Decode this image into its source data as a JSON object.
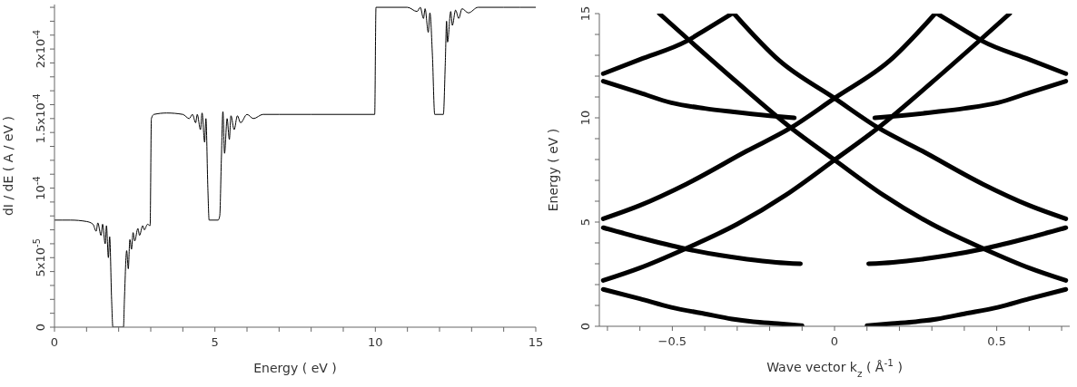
{
  "chart_data": [
    {
      "type": "line",
      "xlabel": "Energy ( eV )",
      "ylabel": "dI / dE ( A / eV )",
      "xlim": [
        0,
        15
      ],
      "ylim": [
        0,
        0.000232
      ],
      "xticks": [
        0,
        {
          "value": 1,
          "label": null
        },
        {
          "value": 2,
          "label": null
        },
        {
          "value": 3,
          "label": null
        },
        {
          "value": 4,
          "label": null
        },
        5,
        {
          "value": 6,
          "label": null
        },
        {
          "value": 7,
          "label": null
        },
        {
          "value": 8,
          "label": null
        },
        {
          "value": 9,
          "label": null
        },
        10,
        {
          "value": 11,
          "label": null
        },
        {
          "value": 12,
          "label": null
        },
        {
          "value": 13,
          "label": null
        },
        {
          "value": 14,
          "label": null
        },
        15
      ],
      "yticks": [
        0,
        {
          "value": 1e-05,
          "label": null
        },
        {
          "value": 2e-05,
          "label": null
        },
        {
          "value": 3e-05,
          "label": null
        },
        {
          "value": 4e-05,
          "label": null
        },
        {
          "value": 5e-05,
          "label": "5x10$^{-5}$"
        },
        {
          "value": 6e-05,
          "label": null
        },
        {
          "value": 7e-05,
          "label": null
        },
        {
          "value": 8e-05,
          "label": null
        },
        {
          "value": 9e-05,
          "label": null
        },
        {
          "value": 0.0001,
          "label": "10$^{-4}$"
        },
        {
          "value": 0.00011,
          "label": null
        },
        {
          "value": 0.00012,
          "label": null
        },
        {
          "value": 0.00013,
          "label": null
        },
        {
          "value": 0.00014,
          "label": null
        },
        {
          "value": 0.00015,
          "label": "1.5x10$^{-4}$"
        },
        {
          "value": 0.00016,
          "label": null
        },
        {
          "value": 0.00017,
          "label": null
        },
        {
          "value": 0.00018,
          "label": null
        },
        {
          "value": 0.00019,
          "label": null
        },
        {
          "value": 0.0002,
          "label": "2x10$^{-4}$"
        },
        {
          "value": 0.00021,
          "label": null
        },
        {
          "value": 0.00022,
          "label": null
        },
        {
          "value": 0.00023,
          "label": null
        }
      ],
      "series": [
        {
          "color": "#000000",
          "x": [
            0,
            0.5,
            1.0,
            1.2,
            1.3,
            1.35,
            1.45,
            1.5,
            1.58,
            1.62,
            1.68,
            1.72,
            1.78,
            1.82,
            2.15,
            2.18,
            2.25,
            2.3,
            2.35,
            2.4,
            2.45,
            2.5,
            2.6,
            2.65,
            2.75,
            2.8,
            2.9,
            2.98,
            3.02,
            3.1,
            3.5,
            4.0,
            4.2,
            4.3,
            4.4,
            4.45,
            4.55,
            4.6,
            4.68,
            4.72,
            4.78,
            4.82,
            5.1,
            5.15,
            5.2,
            5.25,
            5.3,
            5.38,
            5.45,
            5.5,
            5.6,
            5.7,
            5.8,
            6.0,
            6.2,
            6.5,
            7,
            8,
            9,
            9.98,
            10.02,
            10.5,
            11,
            11.3,
            11.4,
            11.5,
            11.55,
            11.65,
            11.7,
            11.78,
            11.85,
            12.12,
            12.18,
            12.22,
            12.25,
            12.35,
            12.4,
            12.5,
            12.6,
            12.7,
            12.9,
            13.2,
            14,
            15
          ],
          "values": [
            7.7e-05,
            7.7e-05,
            7.6e-05,
            7.4e-05,
            6.9e-05,
            7.5e-05,
            6.6e-05,
            7.4e-05,
            6e-05,
            7.3e-05,
            5e-05,
            6.5e-05,
            2e-05,
            0,
            0,
            2e-05,
            5.5e-05,
            4.2e-05,
            6.3e-05,
            5.6e-05,
            6.8e-05,
            6.2e-05,
            7.1e-05,
            6.6e-05,
            7.3e-05,
            7e-05,
            7.4e-05,
            7.3e-05,
            0.00015,
            0.000153,
            0.000154,
            0.000153,
            0.00015,
            0.000153,
            0.000147,
            0.000153,
            0.000142,
            0.000154,
            0.000133,
            0.00015,
            0.0001,
            7.7e-05,
            7.7e-05,
            8e-05,
            0.00012,
            0.000155,
            0.000125,
            0.00015,
            0.000135,
            0.000152,
            0.000142,
            0.000152,
            0.000147,
            0.000153,
            0.00015,
            0.000153,
            0.000153,
            0.000153,
            0.000153,
            0.000153,
            0.00023,
            0.00023,
            0.00023,
            0.000227,
            0.00023,
            0.000222,
            0.000229,
            0.000212,
            0.000226,
            0.000195,
            0.000153,
            0.000153,
            0.00019,
            0.00022,
            0.000205,
            0.000227,
            0.000217,
            0.000228,
            0.000222,
            0.000229,
            0.000226,
            0.00023,
            0.00023,
            0.00023
          ]
        }
      ]
    },
    {
      "type": "line",
      "xlabel": "Wave vector k$_{z}$ ( Å$^{-1}$ )",
      "ylabel": "Energy ( eV )",
      "xlim": [
        -0.725,
        0.725
      ],
      "ylim": [
        0,
        15
      ],
      "xticks": [
        {
          "value": -0.7,
          "label": null
        },
        {
          "value": -0.6,
          "label": null
        },
        {
          "value": -0.5,
          "label": "−0.5"
        },
        {
          "value": -0.4,
          "label": null
        },
        {
          "value": -0.3,
          "label": null
        },
        {
          "value": -0.2,
          "label": null
        },
        {
          "value": -0.1,
          "label": null
        },
        0,
        {
          "value": 0.1,
          "label": null
        },
        {
          "value": 0.2,
          "label": null
        },
        {
          "value": 0.3,
          "label": null
        },
        {
          "value": 0.4,
          "label": null
        },
        0.5,
        {
          "value": 0.6,
          "label": null
        },
        {
          "value": 0.7,
          "label": null
        }
      ],
      "yticks": [
        0,
        {
          "value": 1,
          "label": null
        },
        {
          "value": 2,
          "label": null
        },
        {
          "value": 3,
          "label": null
        },
        {
          "value": 4,
          "label": null
        },
        5,
        {
          "value": 6,
          "label": null
        },
        {
          "value": 7,
          "label": null
        },
        {
          "value": 8,
          "label": null
        },
        {
          "value": 9,
          "label": null
        },
        10,
        {
          "value": 11,
          "label": null
        },
        {
          "value": 12,
          "label": null
        },
        {
          "value": 13,
          "label": null
        },
        {
          "value": 14,
          "label": null
        },
        15
      ],
      "series": [
        {
          "color": "#000000",
          "x": [
            -0.713,
            -0.6,
            -0.503,
            -0.4,
            -0.316,
            -0.25,
            -0.176,
            -0.1
          ],
          "values": [
            1.77,
            1.32,
            0.91,
            0.6,
            0.35,
            0.22,
            0.13,
            0.03
          ]
        },
        {
          "color": "#000000",
          "x": [
            0.1,
            0.176,
            0.25,
            0.316,
            0.4,
            0.503,
            0.6,
            0.713
          ],
          "values": [
            0.03,
            0.13,
            0.22,
            0.35,
            0.6,
            0.91,
            1.32,
            1.77
          ]
        },
        {
          "color": "#000000",
          "x": [
            -0.713,
            -0.6,
            -0.46,
            -0.3,
            -0.15,
            0,
            0.133,
            0.3,
            0.45,
            0.54
          ],
          "values": [
            2.2,
            2.8,
            3.72,
            4.9,
            6.3,
            7.98,
            9.5,
            11.7,
            13.75,
            15
          ]
        },
        {
          "color": "#000000",
          "x": [
            -0.54,
            -0.45,
            -0.3,
            -0.133,
            0,
            0.15,
            0.3,
            0.46,
            0.6,
            0.713
          ],
          "values": [
            15,
            13.75,
            11.7,
            9.5,
            7.98,
            6.3,
            4.9,
            3.72,
            2.8,
            2.2
          ]
        },
        {
          "color": "#000000",
          "x": [
            -0.713,
            -0.6,
            -0.46,
            -0.35,
            -0.27,
            -0.18,
            -0.105
          ],
          "values": [
            4.73,
            4.25,
            3.72,
            3.4,
            3.22,
            3.07,
            3.0
          ]
        },
        {
          "color": "#000000",
          "x": [
            0.105,
            0.18,
            0.27,
            0.35,
            0.46,
            0.6,
            0.713
          ],
          "values": [
            3.0,
            3.07,
            3.22,
            3.4,
            3.72,
            4.25,
            4.73
          ]
        },
        {
          "color": "#000000",
          "x": [
            -0.713,
            -0.6,
            -0.456,
            -0.27,
            -0.138,
            0,
            0.17,
            0.31
          ],
          "values": [
            5.16,
            5.8,
            6.83,
            8.41,
            9.49,
            10.94,
            12.74,
            15
          ]
        },
        {
          "color": "#000000",
          "x": [
            -0.31,
            -0.17,
            0,
            0.138,
            0.27,
            0.456,
            0.6,
            0.713
          ],
          "values": [
            15,
            12.74,
            10.94,
            9.49,
            8.41,
            6.83,
            5.8,
            5.16
          ]
        },
        {
          "color": "#000000",
          "x": [
            -0.713,
            -0.6,
            -0.503,
            -0.4,
            -0.316,
            -0.2,
            -0.124
          ],
          "values": [
            11.76,
            11.2,
            10.72,
            10.45,
            10.29,
            10.1,
            10.0
          ]
        },
        {
          "color": "#000000",
          "x": [
            0.124,
            0.2,
            0.316,
            0.4,
            0.503,
            0.6,
            0.713
          ],
          "values": [
            10.0,
            10.1,
            10.29,
            10.45,
            10.72,
            11.2,
            11.76
          ]
        },
        {
          "color": "#000000",
          "x": [
            -0.713,
            -0.6,
            -0.456,
            -0.4,
            -0.316
          ],
          "values": [
            12.12,
            12.8,
            13.68,
            14.2,
            15
          ]
        },
        {
          "color": "#000000",
          "x": [
            0.316,
            0.4,
            0.456,
            0.6,
            0.713
          ],
          "values": [
            15,
            14.2,
            13.68,
            12.8,
            12.12
          ]
        }
      ]
    }
  ]
}
